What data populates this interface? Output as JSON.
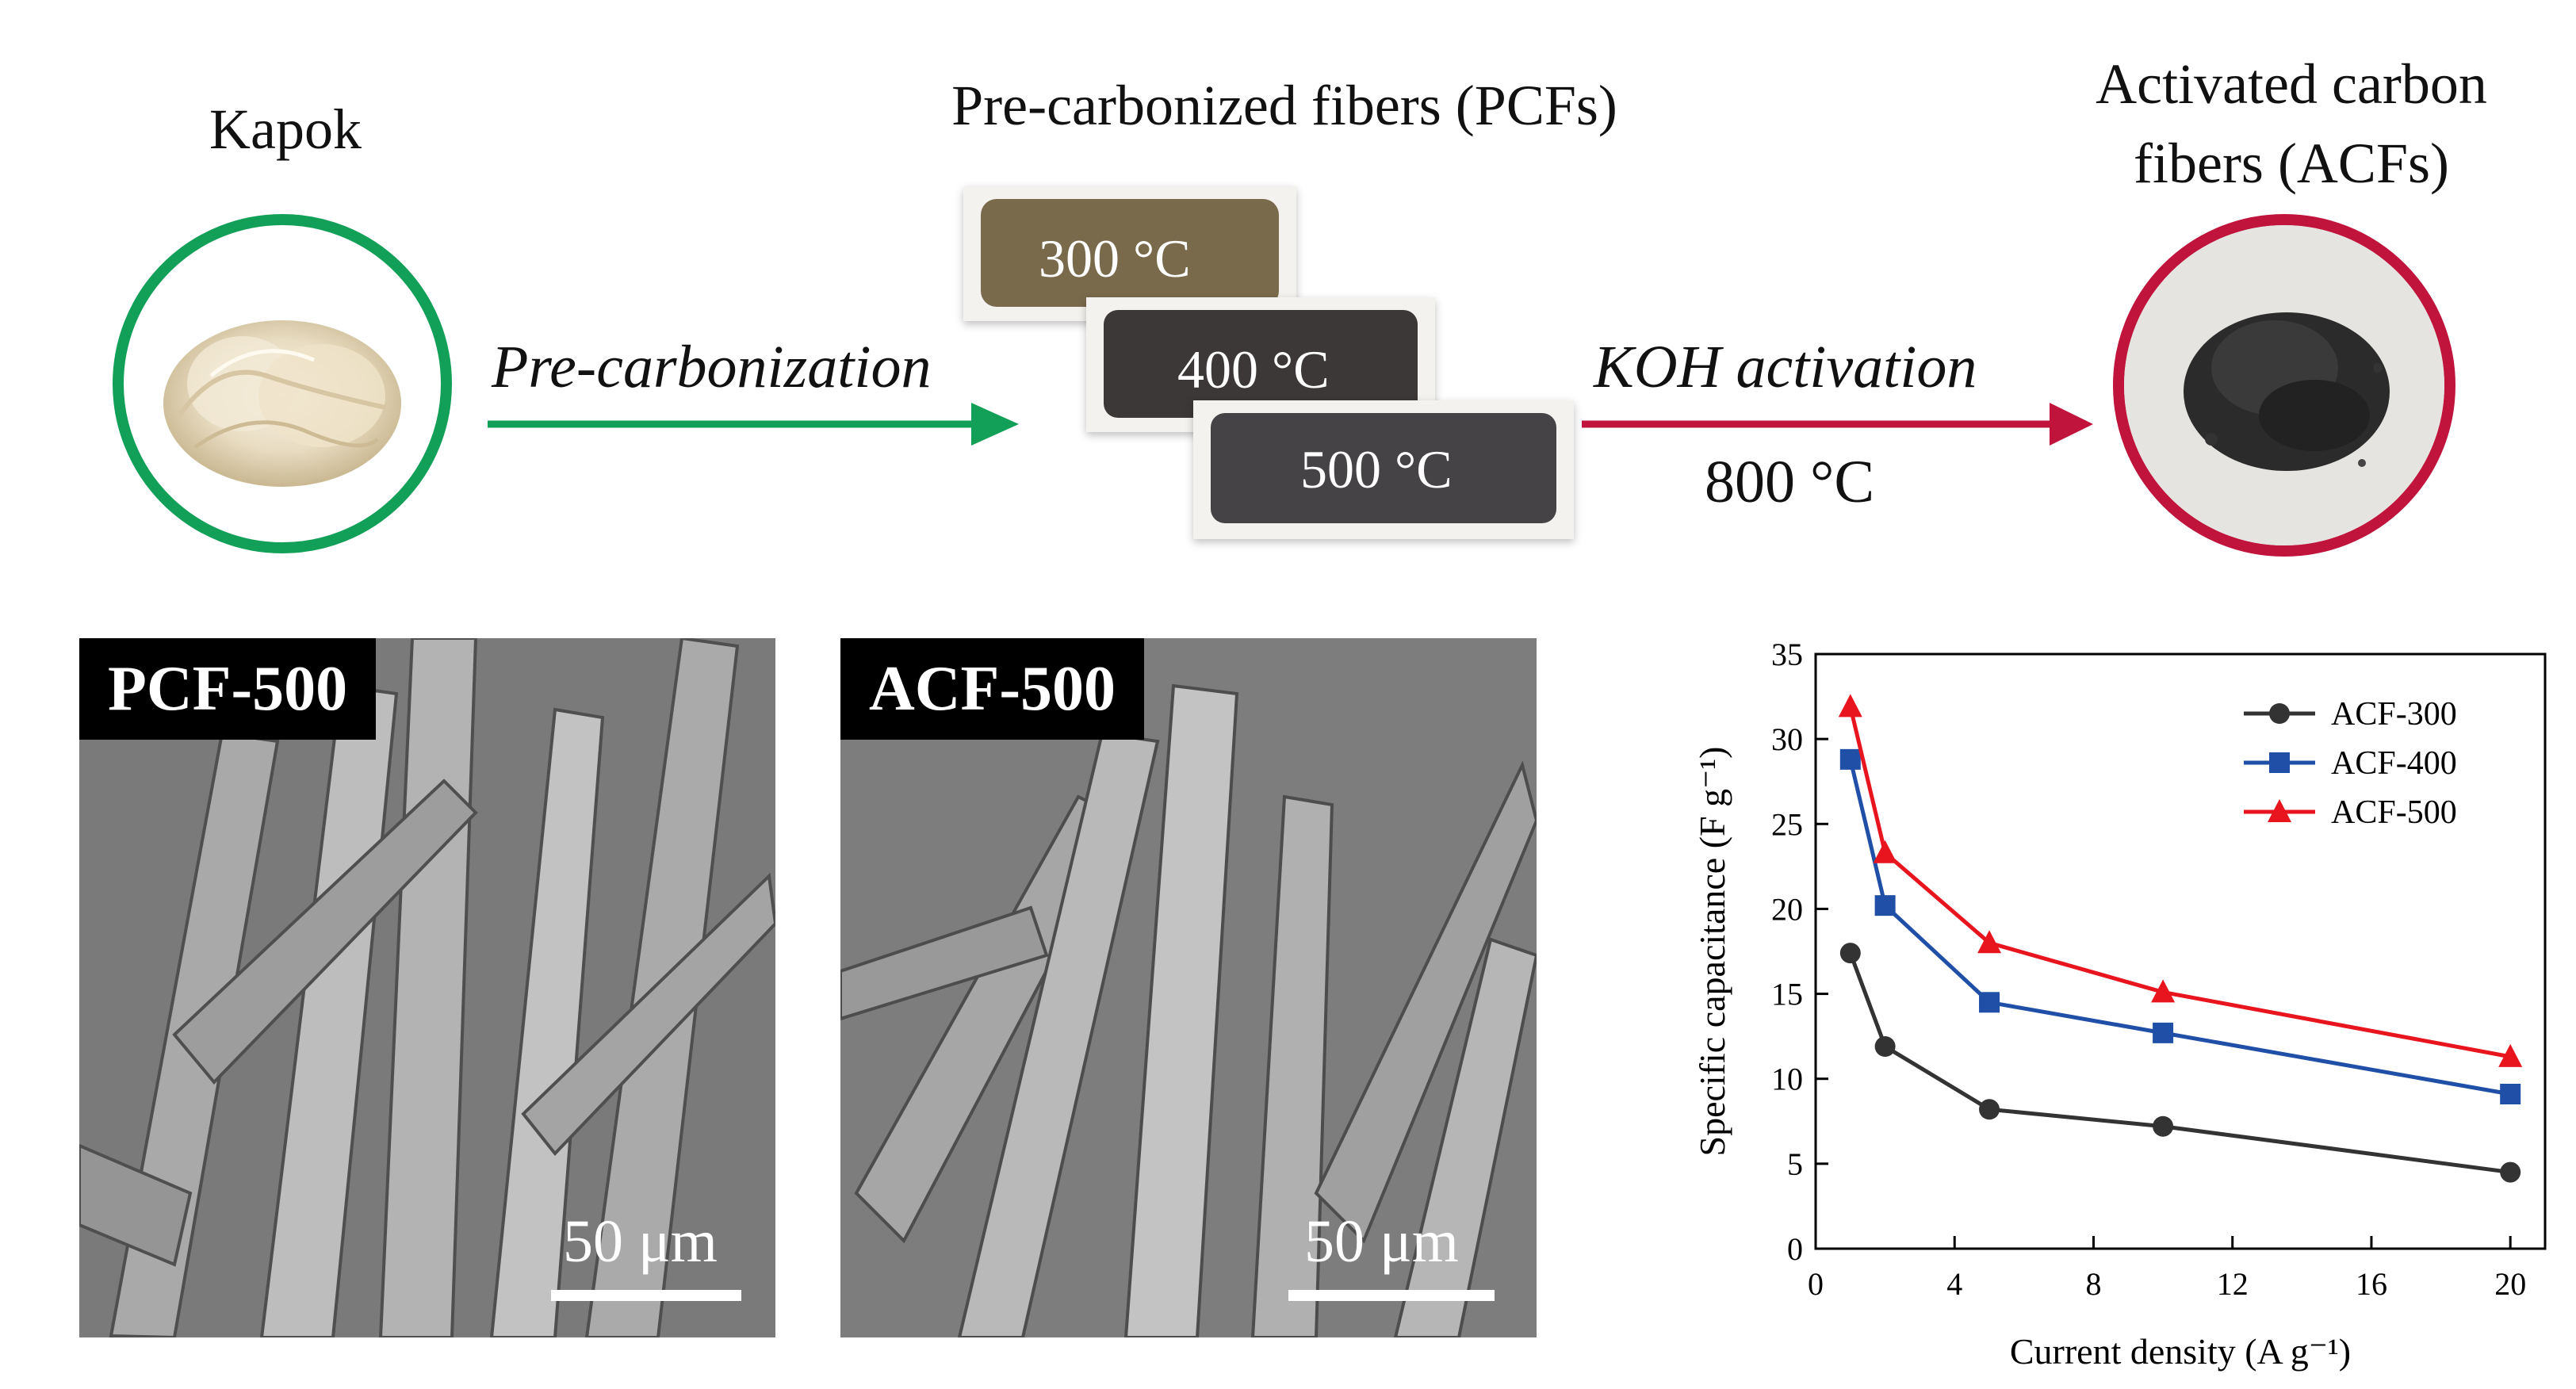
{
  "process": {
    "kapok_label": "Kapok",
    "pcf_title": "Pre-carbonized fibers (PCFs)",
    "acf_title_line1": "Activated carbon",
    "acf_title_line2": "fibers (ACFs)",
    "step1_label": "Pre-carbonization",
    "step2_label": "KOH activation",
    "step2_temp": "800 °C",
    "tray_labels": [
      "300 °C",
      "400 °C",
      "500 °C"
    ]
  },
  "colors": {
    "green": "#12a058",
    "crimson": "#c0143c"
  },
  "sem": {
    "left_label": "PCF-500",
    "right_label": "ACF-500",
    "scale_text": "50 μm"
  },
  "chart_data": {
    "type": "line",
    "xlabel": "Current density (A g⁻¹)",
    "ylabel": "Specific capacitance (F g⁻¹)",
    "xlim": [
      0,
      21
    ],
    "ylim": [
      0,
      35
    ],
    "xticks": [
      0,
      4,
      8,
      12,
      16,
      20
    ],
    "yticks": [
      0,
      5,
      10,
      15,
      20,
      25,
      30,
      35
    ],
    "legend_position": "top-right",
    "x": [
      1,
      2,
      5,
      10,
      20
    ],
    "series": [
      {
        "name": "ACF-300",
        "color": "#333333",
        "marker": "circle",
        "values": [
          17.4,
          11.9,
          8.2,
          7.2,
          4.5
        ]
      },
      {
        "name": "ACF-400",
        "color": "#1f4fa6",
        "marker": "square",
        "values": [
          28.8,
          20.2,
          14.5,
          12.7,
          9.1
        ]
      },
      {
        "name": "ACF-500",
        "color": "#e8141e",
        "marker": "triangle",
        "values": [
          31.9,
          23.3,
          18.0,
          15.1,
          11.3
        ]
      }
    ]
  }
}
